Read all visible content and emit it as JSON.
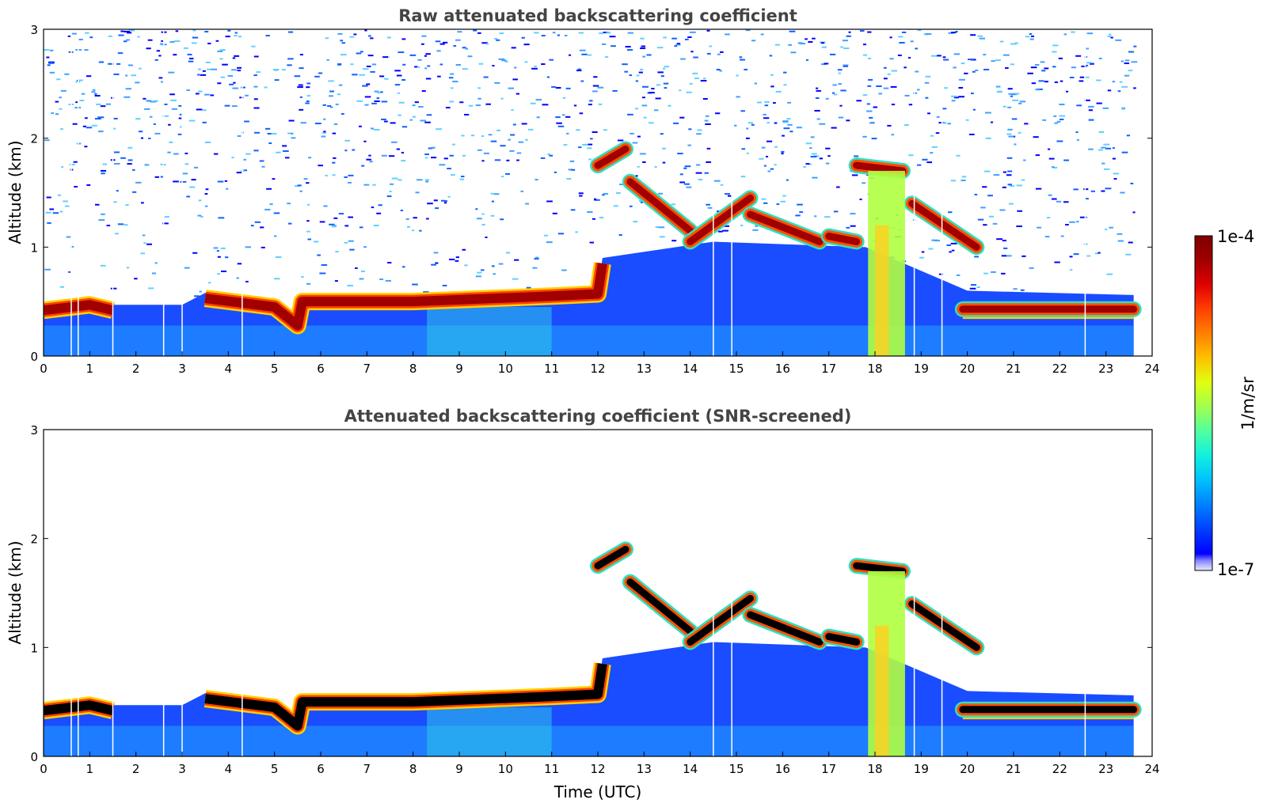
{
  "colors": {
    "jet": [
      "#000080",
      "#0000c0",
      "#0000ff",
      "#0040ff",
      "#0080ff",
      "#00c0ff",
      "#10f0e0",
      "#50ffa0",
      "#a0ff50",
      "#e0ff10",
      "#ffc000",
      "#ff8000",
      "#ff4000",
      "#e00000",
      "#a00000",
      "#7f0000"
    ],
    "background": "#ffffff",
    "title_color": "#444444"
  },
  "chart_data": [
    {
      "type": "heatmap",
      "title": "Raw attenuated backscattering coefficient",
      "xlabel": "",
      "ylabel": "Altitude (km)",
      "xlim": [
        0,
        24
      ],
      "ylim": [
        0,
        3
      ],
      "x_ticks": [
        0,
        1,
        2,
        3,
        4,
        5,
        6,
        7,
        8,
        9,
        10,
        11,
        12,
        13,
        14,
        15,
        16,
        17,
        18,
        19,
        20,
        21,
        22,
        23,
        24
      ],
      "y_ticks": [
        0,
        1,
        2,
        3
      ],
      "data_end_time": 23.6,
      "boundary_layer": {
        "time": [
          0,
          1,
          1.5,
          3,
          3.5,
          5.0,
          5.5,
          5.6,
          8,
          11,
          12.0,
          12.1
        ],
        "top_km": [
          0.47,
          0.52,
          0.47,
          0.47,
          0.58,
          0.5,
          0.33,
          0.55,
          0.55,
          0.6,
          0.62,
          0.9
        ]
      },
      "cloud_layers": [
        {
          "time": [
            12.0,
            12.6
          ],
          "alt_km": [
            1.75,
            1.9
          ]
        },
        {
          "time": [
            12.7,
            14.0
          ],
          "alt_km": [
            1.6,
            1.15
          ]
        },
        {
          "time": [
            14.0,
            15.3
          ],
          "alt_km": [
            1.05,
            1.45
          ]
        },
        {
          "time": [
            15.3,
            16.8
          ],
          "alt_km": [
            1.3,
            1.05
          ]
        },
        {
          "time": [
            17.0,
            17.6
          ],
          "alt_km": [
            1.1,
            1.05
          ]
        },
        {
          "time": [
            17.6,
            18.6
          ],
          "alt_km": [
            1.75,
            1.7
          ]
        },
        {
          "time": [
            18.8,
            20.2
          ],
          "alt_km": [
            1.4,
            1.0
          ]
        },
        {
          "time": [
            19.9,
            23.6
          ],
          "alt_km": [
            0.43,
            0.43
          ]
        }
      ],
      "precipitation_event": {
        "time": [
          17.85,
          18.65
        ],
        "alt_km": [
          0,
          1.7
        ]
      },
      "colorbar": {
        "label": "1/m/sr",
        "min_label": "1e-7",
        "max_label": "1e-4",
        "scale": "log"
      }
    },
    {
      "type": "heatmap",
      "title": "Attenuated backscattering coefficient (SNR-screened)",
      "xlabel": "Time (UTC)",
      "ylabel": "Altitude (km)",
      "xlim": [
        0,
        24
      ],
      "ylim": [
        0,
        3
      ],
      "x_ticks": [
        0,
        1,
        2,
        3,
        4,
        5,
        6,
        7,
        8,
        9,
        10,
        11,
        12,
        13,
        14,
        15,
        16,
        17,
        18,
        19,
        20,
        21,
        22,
        23,
        24
      ],
      "y_ticks": [
        0,
        1,
        2,
        3
      ],
      "data_end_time": 23.6,
      "saturated_color": "#000000"
    }
  ],
  "colorbar": {
    "label": "1/m/sr",
    "min_label": "1e-7",
    "max_label": "1e-4"
  }
}
